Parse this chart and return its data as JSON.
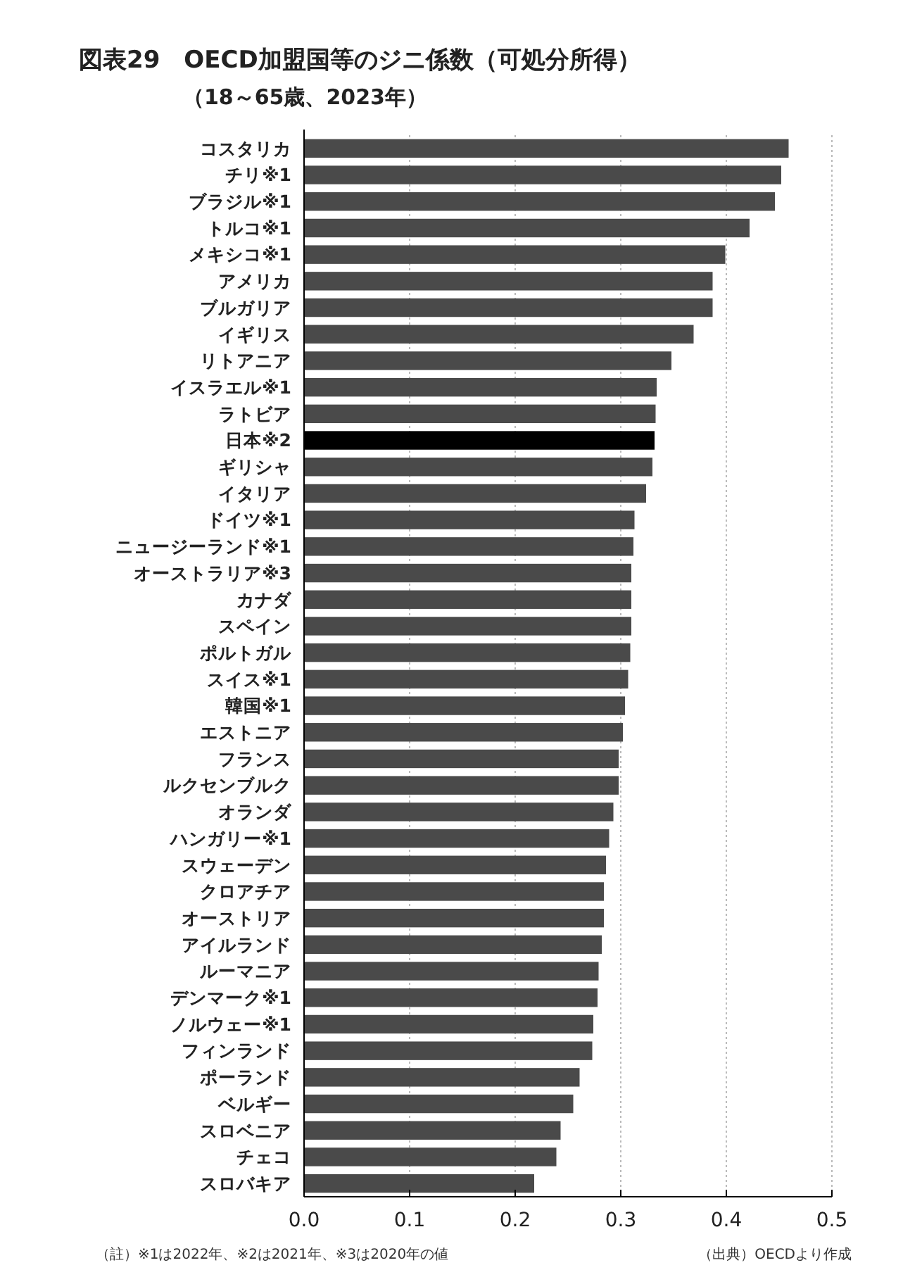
{
  "chart_data": {
    "type": "bar",
    "orientation": "horizontal",
    "title": "図表29　OECD加盟国等のジニ係数（可処分所得）",
    "subtitle": "（18～65歳、2023年）",
    "categories": [
      "コスタリカ",
      "チリ※1",
      "ブラジル※1",
      "トルコ※1",
      "メキシコ※1",
      "アメリカ",
      "ブルガリア",
      "イギリス",
      "リトアニア",
      "イスラエル※1",
      "ラトビア",
      "日本※2",
      "ギリシャ",
      "イタリア",
      "ドイツ※1",
      "ニュージーランド※1",
      "オーストラリア※3",
      "カナダ",
      "スペイン",
      "ポルトガル",
      "スイス※1",
      "韓国※1",
      "エストニア",
      "フランス",
      "ルクセンブルク",
      "オランダ",
      "ハンガリー※1",
      "スウェーデン",
      "クロアチア",
      "オーストリア",
      "アイルランド",
      "ルーマニア",
      "デンマーク※1",
      "ノルウェー※1",
      "フィンランド",
      "ポーランド",
      "ベルギー",
      "スロベニア",
      "チェコ",
      "スロバキア"
    ],
    "values": [
      0.459,
      0.452,
      0.446,
      0.422,
      0.399,
      0.387,
      0.387,
      0.369,
      0.348,
      0.334,
      0.333,
      0.332,
      0.33,
      0.324,
      0.313,
      0.312,
      0.31,
      0.31,
      0.31,
      0.309,
      0.307,
      0.304,
      0.302,
      0.298,
      0.298,
      0.293,
      0.289,
      0.286,
      0.284,
      0.284,
      0.282,
      0.279,
      0.278,
      0.274,
      0.273,
      0.261,
      0.255,
      0.243,
      0.239,
      0.218
    ],
    "colors": [
      "#4a4a4a",
      "#4a4a4a",
      "#4a4a4a",
      "#4a4a4a",
      "#4a4a4a",
      "#4a4a4a",
      "#4a4a4a",
      "#4a4a4a",
      "#4a4a4a",
      "#4a4a4a",
      "#4a4a4a",
      "#000000",
      "#4a4a4a",
      "#4a4a4a",
      "#4a4a4a",
      "#4a4a4a",
      "#4a4a4a",
      "#4a4a4a",
      "#4a4a4a",
      "#4a4a4a",
      "#4a4a4a",
      "#4a4a4a",
      "#4a4a4a",
      "#4a4a4a",
      "#4a4a4a",
      "#4a4a4a",
      "#4a4a4a",
      "#4a4a4a",
      "#4a4a4a",
      "#4a4a4a",
      "#4a4a4a",
      "#4a4a4a",
      "#4a4a4a",
      "#4a4a4a",
      "#4a4a4a",
      "#4a4a4a",
      "#4a4a4a",
      "#4a4a4a",
      "#4a4a4a",
      "#4a4a4a"
    ],
    "xlim": [
      0,
      0.5
    ],
    "xticks": [
      {
        "value": 0,
        "label": "0.0"
      },
      0.1,
      0.2,
      0.3,
      0.4,
      0.5
    ],
    "grid": "x",
    "annotations": [
      "（註）※1は2022年、※2は2021年、※3は2020年の値",
      "（出典）OECDより作成"
    ]
  }
}
